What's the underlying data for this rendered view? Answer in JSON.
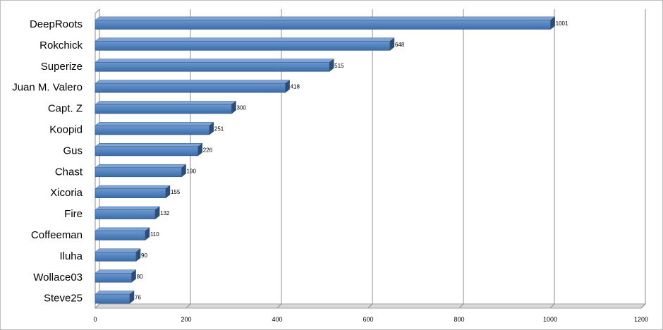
{
  "chart_data": {
    "type": "bar",
    "orientation": "horizontal",
    "style": "3d",
    "title": "",
    "xlabel": "",
    "ylabel": "",
    "categories": [
      "DeepRoots",
      "Rokchick",
      "Superize",
      "Juan M. Valero",
      "Capt. Z",
      "Koopid",
      "Gus",
      "Chast",
      "Xicoria",
      "Fire",
      "Coffeeman",
      "Iluha",
      "Wollace03",
      "Steve25"
    ],
    "values": [
      1001,
      648,
      515,
      418,
      300,
      251,
      226,
      190,
      155,
      132,
      110,
      90,
      80,
      76
    ],
    "xlim": [
      0,
      1200
    ],
    "xticks": [
      0,
      200,
      400,
      600,
      800,
      1000,
      1200
    ],
    "grid": true,
    "legend": "none",
    "colors": {
      "bar_front": "#4f81bd",
      "bar_top": "#7fa3d3",
      "bar_side": "#2c4d7a",
      "bar_edge": "#2f5b8f",
      "grid": "#8c8c8c",
      "floor": "#d9d9d9"
    }
  }
}
